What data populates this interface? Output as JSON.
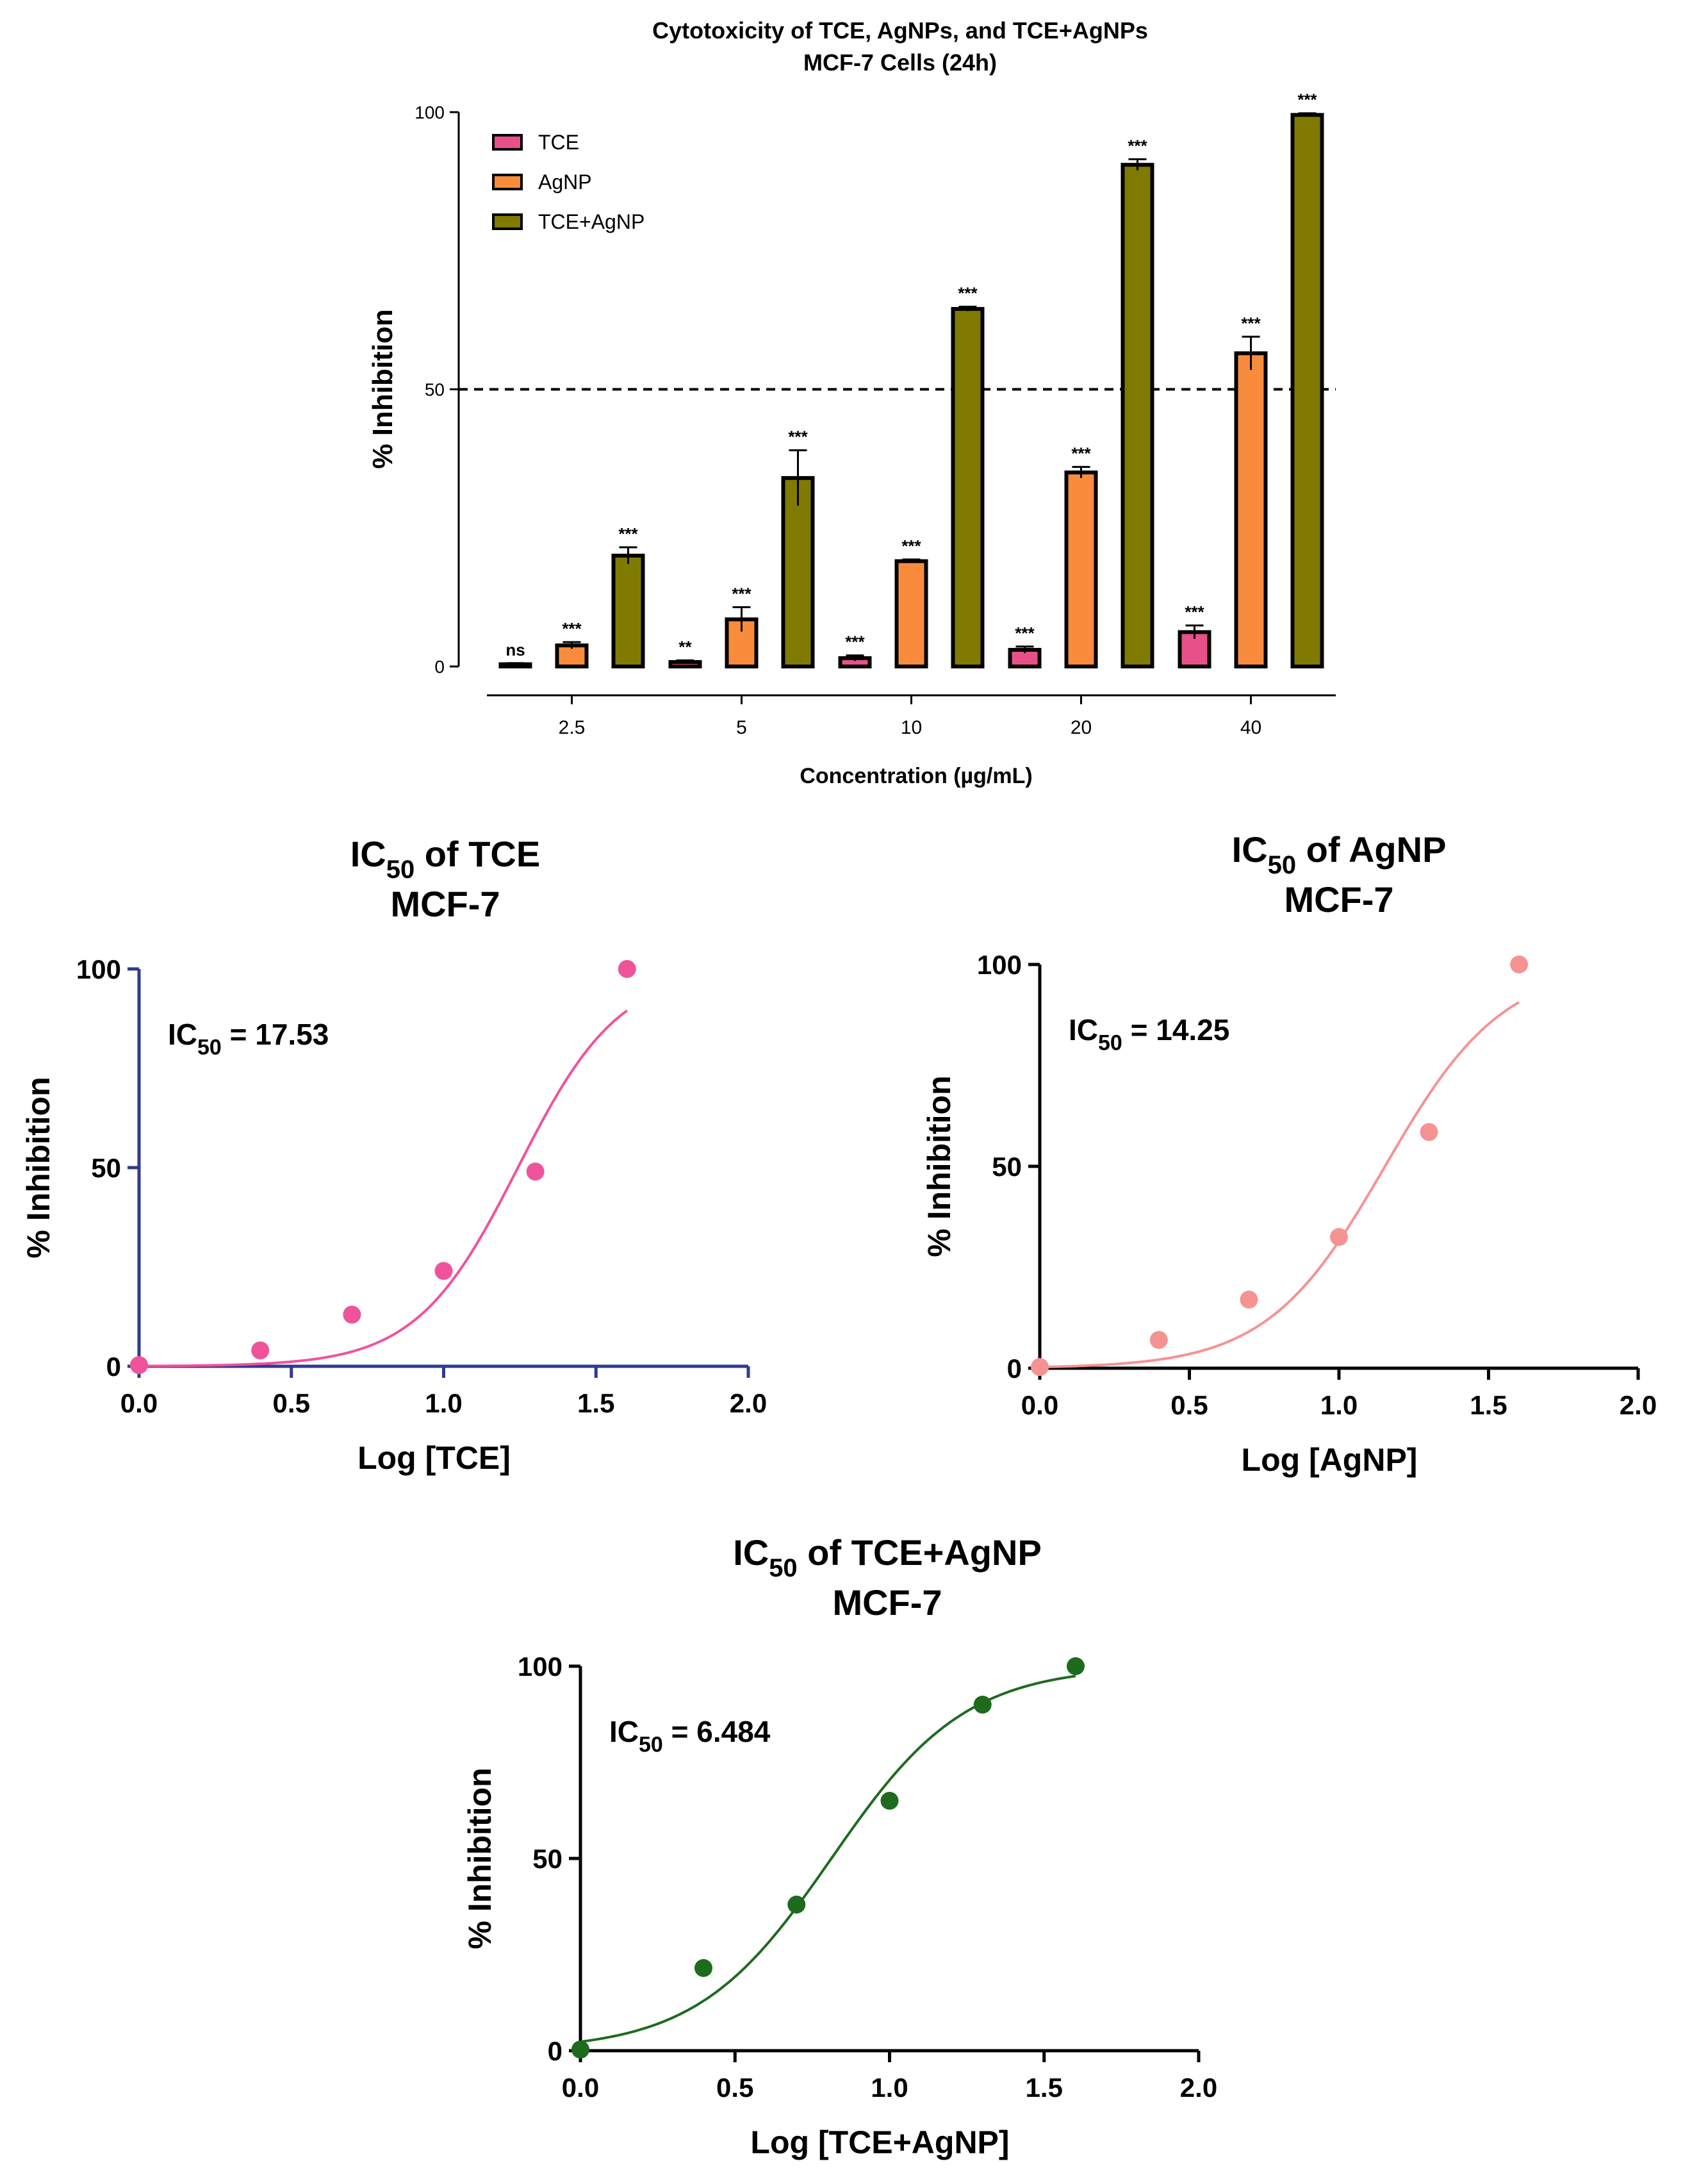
{
  "chart_data": [
    {
      "id": "bar",
      "type": "bar",
      "title": "Cytotoxicity of TCE, AgNPs, and TCE+AgNPs",
      "subtitle": "MCF-7 Cells (24h)",
      "xlabel": "Concentration (µg/mL)",
      "ylabel": "% Inhibition",
      "ylim": [
        0,
        100
      ],
      "yticks": [
        0,
        50,
        100
      ],
      "reference_line": 50,
      "legend_position": "top-left",
      "categories": [
        "2.5",
        "5",
        "10",
        "20",
        "40"
      ],
      "series": [
        {
          "name": "TCE",
          "color": "#e8508a",
          "values": [
            0.4,
            0.8,
            1.5,
            3.0,
            6.2
          ],
          "errors": [
            0.2,
            0.3,
            0.5,
            0.6,
            1.2
          ],
          "significance": [
            "ns",
            "**",
            "***",
            "***",
            "***"
          ]
        },
        {
          "name": "AgNP",
          "color": "#f98b3c",
          "values": [
            3.8,
            8.5,
            19.0,
            35.0,
            56.5
          ],
          "errors": [
            0.6,
            2.2,
            0.3,
            1.0,
            3.0
          ],
          "significance": [
            "***",
            "***",
            "***",
            "***",
            "***"
          ]
        },
        {
          "name": "TCE+AgNP",
          "color": "#807a00",
          "values": [
            20.0,
            34.0,
            64.5,
            90.5,
            99.5
          ],
          "errors": [
            1.5,
            5.0,
            0.4,
            1.0,
            0.3
          ],
          "significance": [
            "***",
            "***",
            "***",
            "***",
            "***"
          ]
        }
      ]
    },
    {
      "id": "tce",
      "type": "scatter",
      "title": "IC50 of TCE",
      "title_parts": {
        "prefix": "IC",
        "sub": "50",
        "rest": " of TCE"
      },
      "subtitle": "MCF-7",
      "xlabel": "Log [TCE]",
      "ylabel": "% Inhibition",
      "xlim": [
        0,
        2
      ],
      "ylim": [
        0,
        100
      ],
      "xticks": [
        "0.0",
        "0.5",
        "1.0",
        "1.5",
        "2.0"
      ],
      "yticks": [
        "0",
        "50",
        "100"
      ],
      "ic50_label": "IC50 = 17.53",
      "ic50_parts": {
        "prefix": "IC",
        "sub": "50",
        "rest": " = 17.53"
      },
      "ic50": 17.53,
      "hill": 2.6,
      "color": "#f0529c",
      "axis_color": "#2e3b8e",
      "x": [
        0.0,
        0.398,
        0.699,
        1.0,
        1.301,
        1.602
      ],
      "y": [
        0.3,
        4.0,
        13.0,
        24.0,
        49.0,
        100.0
      ]
    },
    {
      "id": "agnp",
      "type": "scatter",
      "title": "IC50 of AgNP",
      "title_parts": {
        "prefix": "IC",
        "sub": "50",
        "rest": " of AgNP"
      },
      "subtitle": "MCF-7",
      "xlabel": "Log [AgNP]",
      "ylabel": "% Inhibition",
      "xlim": [
        0,
        2
      ],
      "ylim": [
        0,
        100
      ],
      "xticks": [
        "0.0",
        "0.5",
        "1.0",
        "1.5",
        "2.0"
      ],
      "yticks": [
        "0",
        "50",
        "100"
      ],
      "ic50_label": "IC50 = 14.25",
      "ic50_parts": {
        "prefix": "IC",
        "sub": "50",
        "rest": " = 14.25"
      },
      "ic50": 14.25,
      "hill": 2.2,
      "color": "#f59393",
      "axis_color": "#000000",
      "x": [
        0.0,
        0.398,
        0.699,
        1.0,
        1.301,
        1.602
      ],
      "y": [
        0.3,
        7.0,
        17.0,
        32.5,
        58.5,
        100.0
      ]
    },
    {
      "id": "combo",
      "type": "scatter",
      "title": "IC50 of TCE+AgNP",
      "title_parts": {
        "prefix": "IC",
        "sub": "50",
        "rest": " of TCE+AgNP"
      },
      "subtitle": "MCF-7",
      "xlabel": "Log [TCE+AgNP]",
      "ylabel": "% Inhibition",
      "xlim": [
        0,
        2
      ],
      "ylim": [
        0,
        100
      ],
      "xticks": [
        "0.0",
        "0.5",
        "1.0",
        "1.5",
        "2.0"
      ],
      "yticks": [
        "0",
        "50",
        "100"
      ],
      "ic50_label": "IC50 = 6.484",
      "ic50_parts": {
        "prefix": "IC",
        "sub": "50",
        "rest": " = 6.484"
      },
      "ic50": 6.484,
      "hill": 2.0,
      "color": "#1e6b1e",
      "axis_color": "#000000",
      "x": [
        0.0,
        0.398,
        0.699,
        1.0,
        1.301,
        1.602
      ],
      "y": [
        0.3,
        21.5,
        38.0,
        65.0,
        90.0,
        100.0
      ]
    }
  ]
}
